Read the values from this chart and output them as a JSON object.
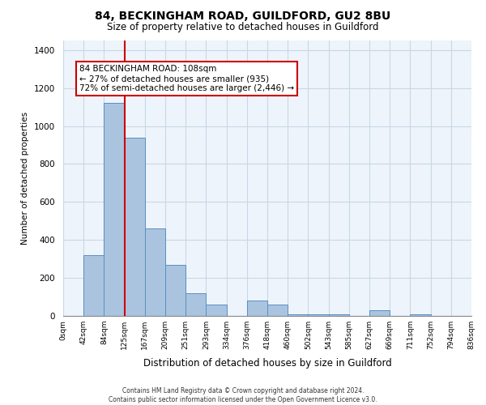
{
  "title1": "84, BECKINGHAM ROAD, GUILDFORD, GU2 8BU",
  "title2": "Size of property relative to detached houses in Guildford",
  "xlabel": "Distribution of detached houses by size in Guildford",
  "ylabel": "Number of detached properties",
  "bar_color": "#aac4e0",
  "bar_edge_color": "#5a8fc0",
  "grid_color": "#c8d8e8",
  "bg_color": "#eef4fb",
  "annotation_box_color": "#cc0000",
  "annotation_line": "#cc0000",
  "annotation_text": "84 BECKINGHAM ROAD: 108sqm\n← 27% of detached houses are smaller (935)\n72% of semi-detached houses are larger (2,446) →",
  "footer1": "Contains HM Land Registry data © Crown copyright and database right 2024.",
  "footer2": "Contains public sector information licensed under the Open Government Licence v3.0.",
  "bin_labels": [
    "0sqm",
    "42sqm",
    "84sqm",
    "125sqm",
    "167sqm",
    "209sqm",
    "251sqm",
    "293sqm",
    "334sqm",
    "376sqm",
    "418sqm",
    "460sqm",
    "502sqm",
    "543sqm",
    "585sqm",
    "627sqm",
    "669sqm",
    "711sqm",
    "752sqm",
    "794sqm",
    "836sqm"
  ],
  "bar_heights": [
    0,
    320,
    1120,
    940,
    460,
    270,
    120,
    60,
    0,
    80,
    60,
    10,
    10,
    10,
    0,
    30,
    0,
    10,
    0,
    0
  ],
  "property_bin_index": 2,
  "ylim": [
    0,
    1450
  ],
  "yticks": [
    0,
    200,
    400,
    600,
    800,
    1000,
    1200,
    1400
  ]
}
